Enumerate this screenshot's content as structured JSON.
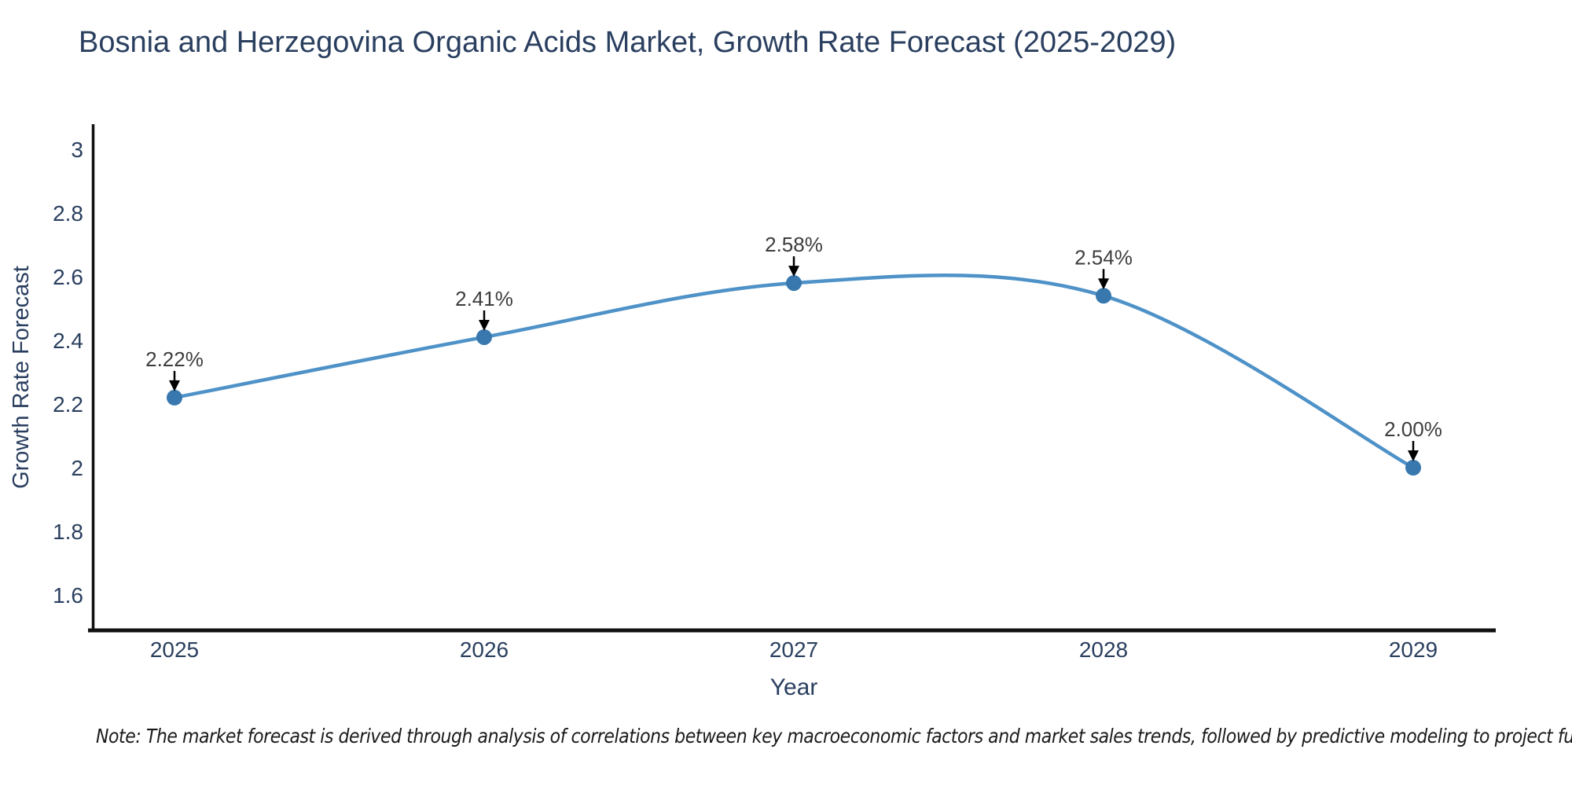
{
  "title": "Bosnia and Herzegovina Organic Acids Market, Growth Rate Forecast (2025-2029)",
  "note": "Note: The market forecast is derived through analysis of correlations between key macroeconomic factors and market sales trends, followed by predictive modeling to project future sales",
  "chart_data": {
    "type": "line",
    "line_shape": "spline",
    "title": "Bosnia and Herzegovina Organic Acids Market, Growth Rate Forecast (2025-2029)",
    "xlabel": "Year",
    "ylabel": "Growth Rate Forecast",
    "x": [
      2025,
      2026,
      2027,
      2028,
      2029
    ],
    "x_tick_labels": [
      "2025",
      "2026",
      "2027",
      "2028",
      "2029"
    ],
    "series": [
      {
        "name": "Growth Rate Forecast",
        "values": [
          2.22,
          2.41,
          2.58,
          2.54,
          2.0
        ]
      }
    ],
    "point_labels": [
      "2.22%",
      "2.41%",
      "2.58%",
      "2.54%",
      "2.00%"
    ],
    "yticks": [
      1.6,
      1.8,
      2,
      2.2,
      2.4,
      2.6,
      2.8,
      3
    ],
    "ytick_labels": [
      "1.6",
      "1.8",
      "2",
      "2.2",
      "2.4",
      "2.6",
      "2.8",
      "3"
    ],
    "ylim": [
      1.49,
      3.08
    ],
    "xlim": [
      2024.73,
      2029.27
    ],
    "grid": false,
    "legend_position": "none",
    "markers": true,
    "annotation_arrows": true,
    "colors": {
      "line": "#4e92c8",
      "marker": "#3878af",
      "arrow": "#000000",
      "text": "#2a3f5f",
      "axis": "#111111",
      "note_text": "#1a1a1a",
      "background": "#ffffff"
    }
  }
}
